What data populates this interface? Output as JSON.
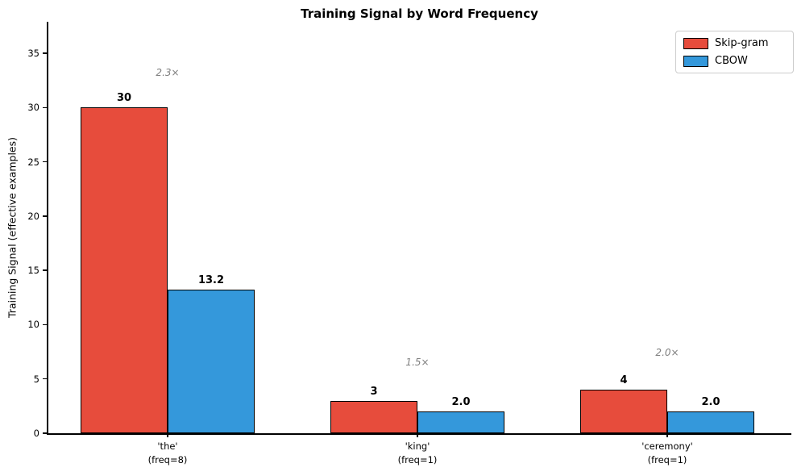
{
  "chart_data": {
    "type": "bar",
    "title": "Training Signal by Word Frequency",
    "xlabel": "",
    "ylabel": "Training Signal (effective examples)",
    "ylim": [
      0,
      37.9
    ],
    "yticks": [
      0,
      5,
      10,
      15,
      20,
      25,
      30,
      35
    ],
    "grid": false,
    "legend_position": "upper right",
    "categories": [
      "'the'",
      "'king'",
      "'ceremony'"
    ],
    "category_sublabels": [
      "(freq=8)",
      "(freq=1)",
      "(freq=1)"
    ],
    "series": [
      {
        "name": "Skip-gram",
        "color": "#e74c3c",
        "values": [
          30,
          3,
          4
        ],
        "value_labels": [
          "30",
          "3",
          "4"
        ]
      },
      {
        "name": "CBOW",
        "color": "#3498db",
        "values": [
          13.2,
          2.0,
          2.0
        ],
        "value_labels": [
          "13.2",
          "2.0",
          "2.0"
        ]
      }
    ],
    "annotations": [
      {
        "text": "2.3×",
        "group": 0,
        "y": 32.7
      },
      {
        "text": "1.5×",
        "group": 1,
        "y": 6.0
      },
      {
        "text": "2.0×",
        "group": 2,
        "y": 6.9
      }
    ],
    "annotation_color": "#808080",
    "bar_edge_color": "#000000"
  },
  "legend": {
    "items": [
      {
        "label": "Skip-gram",
        "color": "#e74c3c"
      },
      {
        "label": "CBOW",
        "color": "#3498db"
      }
    ]
  }
}
